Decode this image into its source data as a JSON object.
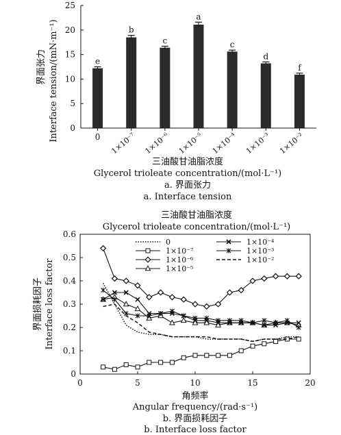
{
  "chart_data": [
    {
      "type": "bar",
      "categories": [
        "0",
        "1×10⁻⁷",
        "1×10⁻⁶",
        "1×10⁻⁵",
        "1×10⁻⁴",
        "1×10⁻³",
        "1×10⁻²"
      ],
      "values": [
        12.2,
        18.5,
        16.4,
        21.1,
        15.6,
        13.2,
        10.9
      ],
      "errors": [
        0.3,
        0.4,
        0.3,
        0.5,
        0.3,
        0.3,
        0.3
      ],
      "letters": [
        "e",
        "b",
        "c",
        "a",
        "c",
        "d",
        "f"
      ],
      "ylabel_cn": "界面张力",
      "ylabel": "Interface tension/(mN·m⁻¹)",
      "xlabel_cn": "三油酸甘油脂浓度",
      "xlabel": "Glycerol trioleate concentration/(mol·L⁻¹)",
      "ylim": [
        0,
        25
      ],
      "yticks": [
        "0",
        "5",
        "10",
        "15",
        "20",
        "25"
      ],
      "caption_cn": "a. 界面张力",
      "caption": "a. Interface tension",
      "bar_color": "#2b2b2b"
    },
    {
      "type": "line",
      "legend_title_cn": "三油酸甘油脂浓度",
      "legend_title": "Glycerol trioleate concentration/(mol·L⁻¹)",
      "xlabel_cn": "角频率",
      "xlabel": "Angular frequency/(rad·s⁻¹)",
      "ylabel_cn": "界面损耗因子",
      "ylabel": "Interface loss factor",
      "xlim": [
        0,
        20
      ],
      "ylim": [
        0,
        0.6
      ],
      "xticks": [
        "0",
        "5",
        "10",
        "15",
        "20"
      ],
      "yticks": [
        "0",
        "0.1",
        "0.2",
        "0.3",
        "0.4",
        "0.5",
        "0.6"
      ],
      "caption_cn": "b. 界面损耗因子",
      "caption": "b. Interface loss factor",
      "x": [
        2,
        3,
        4,
        5,
        6,
        7,
        8,
        9,
        10,
        11,
        12,
        13,
        14,
        15,
        16,
        17,
        18,
        19
      ],
      "series": [
        {
          "name": "0",
          "style": "dotted",
          "values": [
            0.39,
            0.3,
            0.21,
            0.18,
            0.17,
            0.17,
            0.16,
            0.16,
            0.16,
            0.15,
            0.15,
            0.15,
            0.15,
            0.14,
            0.15,
            0.15,
            0.16,
            0.16
          ]
        },
        {
          "name": "1×10⁻⁷",
          "style": "solid",
          "marker": "square",
          "values": [
            0.03,
            0.02,
            0.04,
            0.03,
            0.05,
            0.05,
            0.05,
            0.07,
            0.08,
            0.08,
            0.08,
            0.08,
            0.1,
            0.12,
            0.13,
            0.14,
            0.15,
            0.15
          ]
        },
        {
          "name": "1×10⁻⁶",
          "style": "solid",
          "marker": "diamond",
          "values": [
            0.54,
            0.41,
            0.4,
            0.38,
            0.33,
            0.35,
            0.33,
            0.32,
            0.3,
            0.29,
            0.3,
            0.35,
            0.36,
            0.4,
            0.41,
            0.42,
            0.42,
            0.42
          ]
        },
        {
          "name": "1×10⁻⁵",
          "style": "solid",
          "marker": "triangle",
          "values": [
            0.32,
            0.33,
            0.3,
            0.28,
            0.24,
            0.25,
            0.22,
            0.23,
            0.22,
            0.22,
            0.21,
            0.22,
            0.22,
            0.22,
            0.21,
            0.22,
            0.22,
            0.21
          ]
        },
        {
          "name": "1×10⁻⁴",
          "style": "solid",
          "marker": "x",
          "values": [
            0.32,
            0.35,
            0.35,
            0.32,
            0.26,
            0.26,
            0.26,
            0.25,
            0.23,
            0.23,
            0.22,
            0.22,
            0.22,
            0.22,
            0.21,
            0.21,
            0.22,
            0.22
          ]
        },
        {
          "name": "1×10⁻³",
          "style": "solid",
          "marker": "star",
          "values": [
            0.36,
            0.32,
            0.26,
            0.25,
            0.25,
            0.26,
            0.27,
            0.25,
            0.24,
            0.24,
            0.23,
            0.23,
            0.23,
            0.22,
            0.23,
            0.22,
            0.23,
            0.2
          ]
        },
        {
          "name": "1×10⁻²",
          "style": "dashed",
          "values": [
            0.29,
            0.3,
            0.25,
            0.22,
            0.18,
            0.17,
            0.16,
            0.16,
            0.16,
            0.16,
            0.15,
            0.15,
            0.15,
            0.14,
            0.15,
            0.15,
            0.15,
            0.16
          ]
        }
      ]
    }
  ]
}
